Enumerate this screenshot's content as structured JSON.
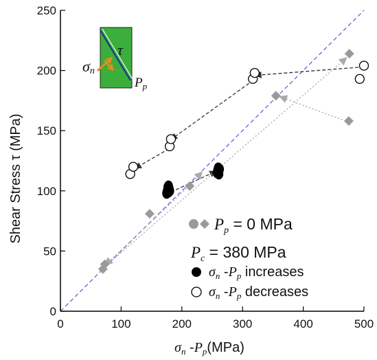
{
  "chart_data": {
    "type": "scatter",
    "title": "",
    "xlabel_parts": [
      "σ",
      "n",
      " -",
      "P",
      "p",
      "(MPa)"
    ],
    "ylabel": "Shear Stress τ (MPa)",
    "xlim": [
      0,
      500
    ],
    "ylim": [
      0,
      250
    ],
    "xticks": [
      0,
      100,
      200,
      300,
      400,
      500
    ],
    "yticks": [
      0,
      50,
      100,
      150,
      200,
      250
    ],
    "grid": false,
    "reference_line": {
      "x": [
        0,
        500
      ],
      "y": [
        0,
        250
      ],
      "color": "#4a5fd0",
      "style": "dashed"
    },
    "series": [
      {
        "name": "Pp = 0 MPa",
        "marker": "diamond",
        "color": "#9a9a9a",
        "x": [
          70,
          73,
          147,
          213,
          355,
          475,
          476
        ],
        "y": [
          35,
          39,
          81,
          104,
          179,
          158,
          214
        ]
      },
      {
        "name": "σn -Pp increases",
        "marker": "filled-circle",
        "color": "#000000",
        "x": [
          175,
          176,
          177,
          177,
          178,
          178,
          179,
          180,
          258,
          259,
          260,
          261,
          262
        ],
        "y": [
          98,
          100,
          101,
          103,
          99,
          104,
          102,
          100,
          115,
          117,
          119,
          114,
          118
        ]
      },
      {
        "name": "σn -Pp decreases",
        "marker": "open-circle",
        "color": "#000000",
        "x": [
          115,
          120,
          180,
          182,
          317,
          320,
          493,
          500
        ],
        "y": [
          114,
          120,
          137,
          143,
          193,
          198,
          193,
          204
        ]
      }
    ],
    "arrows": [
      {
        "from": [
          500,
          203
        ],
        "to": [
          322,
          196
        ],
        "color": "#333333"
      },
      {
        "from": [
          318,
          192
        ],
        "to": [
          183,
          143
        ],
        "color": "#333333"
      },
      {
        "from": [
          179,
          135
        ],
        "to": [
          124,
          119
        ],
        "color": "#333333"
      },
      {
        "from": [
          182,
          99
        ],
        "to": [
          255,
          116
        ],
        "color": "#333333"
      },
      {
        "from": [
          470,
          158
        ],
        "to": [
          363,
          178
        ],
        "color": "#aaaaaa"
      },
      {
        "from": [
          73,
          37
        ],
        "to": [
          470,
          210
        ],
        "color": "#aaaaaa"
      },
      {
        "from": [
          212,
          104
        ],
        "to": [
          75,
          39
        ],
        "color": "#aaaaaa"
      },
      {
        "from": [
          215,
          106
        ],
        "to": [
          232,
          115
        ],
        "color": "#aaaaaa"
      }
    ],
    "legend": {
      "items": [
        {
          "label_parts": [
            "P",
            "p",
            " = 0 MPa"
          ],
          "marker": "gray"
        },
        {
          "label_parts": [
            "P",
            "c",
            " = 380 MPa"
          ],
          "marker": "none"
        },
        {
          "label_parts": [
            "σ",
            "n",
            " -",
            "P",
            "p",
            " increases"
          ],
          "marker": "filled"
        },
        {
          "label_parts": [
            "σ",
            "n",
            " -",
            "P",
            "p",
            " decreases"
          ],
          "marker": "open"
        }
      ]
    },
    "inset_labels": {
      "sigma": "σ",
      "sigma_sub": "n",
      "tau": "τ",
      "pp": "P",
      "pp_sub": "p"
    },
    "inset_colors": {
      "fill": "#3cae3c",
      "line": "#1a3d8f",
      "arrow": "#e88a1a"
    }
  }
}
